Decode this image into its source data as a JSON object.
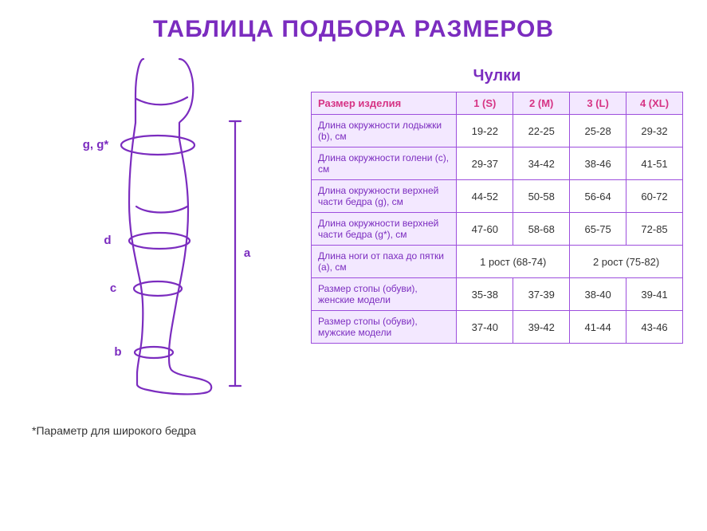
{
  "title": "ТАБЛИЦА ПОДБОРА РАЗМЕРОВ",
  "table_title": "Чулки",
  "footnote": "*Параметр для широкого бедра",
  "colors": {
    "primary": "#7b2cbf",
    "accent": "#d63384",
    "border": "#9d4edd",
    "label_bg": "#f3e8ff",
    "cell_text": "#333333",
    "bg": "#ffffff",
    "footnote": "#333333"
  },
  "typography": {
    "title_size": 30,
    "table_title_size": 20,
    "header_size": 13,
    "cell_size": 13,
    "rowlabel_size": 12,
    "footnote_size": 14,
    "diagram_label_size": 15
  },
  "diagram": {
    "labels": {
      "g": "g, g*",
      "d": "d",
      "c": "c",
      "b": "b",
      "a": "a"
    },
    "stroke_width": 2.2
  },
  "table": {
    "header_label": "Размер изделия",
    "sizes": [
      "1 (S)",
      "2 (M)",
      "3 (L)",
      "4 (XL)"
    ],
    "rows": [
      {
        "label": "Длина окружности лодыжки (b), см",
        "cells": [
          "19-22",
          "22-25",
          "25-28",
          "29-32"
        ]
      },
      {
        "label": "Длина окружности голени (c), см",
        "cells": [
          "29-37",
          "34-42",
          "38-46",
          "41-51"
        ]
      },
      {
        "label": "Длина окружности верхней части бедра (g), см",
        "cells": [
          "44-52",
          "50-58",
          "56-64",
          "60-72"
        ]
      },
      {
        "label": "Длина окружности верхней части бедра (g*), см",
        "cells": [
          "47-60",
          "58-68",
          "65-75",
          "72-85"
        ]
      },
      {
        "label": "Длина ноги от паха до пятки (a), см",
        "merged": [
          {
            "span": 2,
            "text": "1 рост (68-74)"
          },
          {
            "span": 2,
            "text": "2 рост (75-82)"
          }
        ]
      },
      {
        "label": "Размер стопы (обуви), женские модели",
        "cells": [
          "35-38",
          "37-39",
          "38-40",
          "39-41"
        ]
      },
      {
        "label": "Размер стопы (обуви), мужские модели",
        "cells": [
          "37-40",
          "39-42",
          "41-44",
          "43-46"
        ]
      }
    ]
  }
}
